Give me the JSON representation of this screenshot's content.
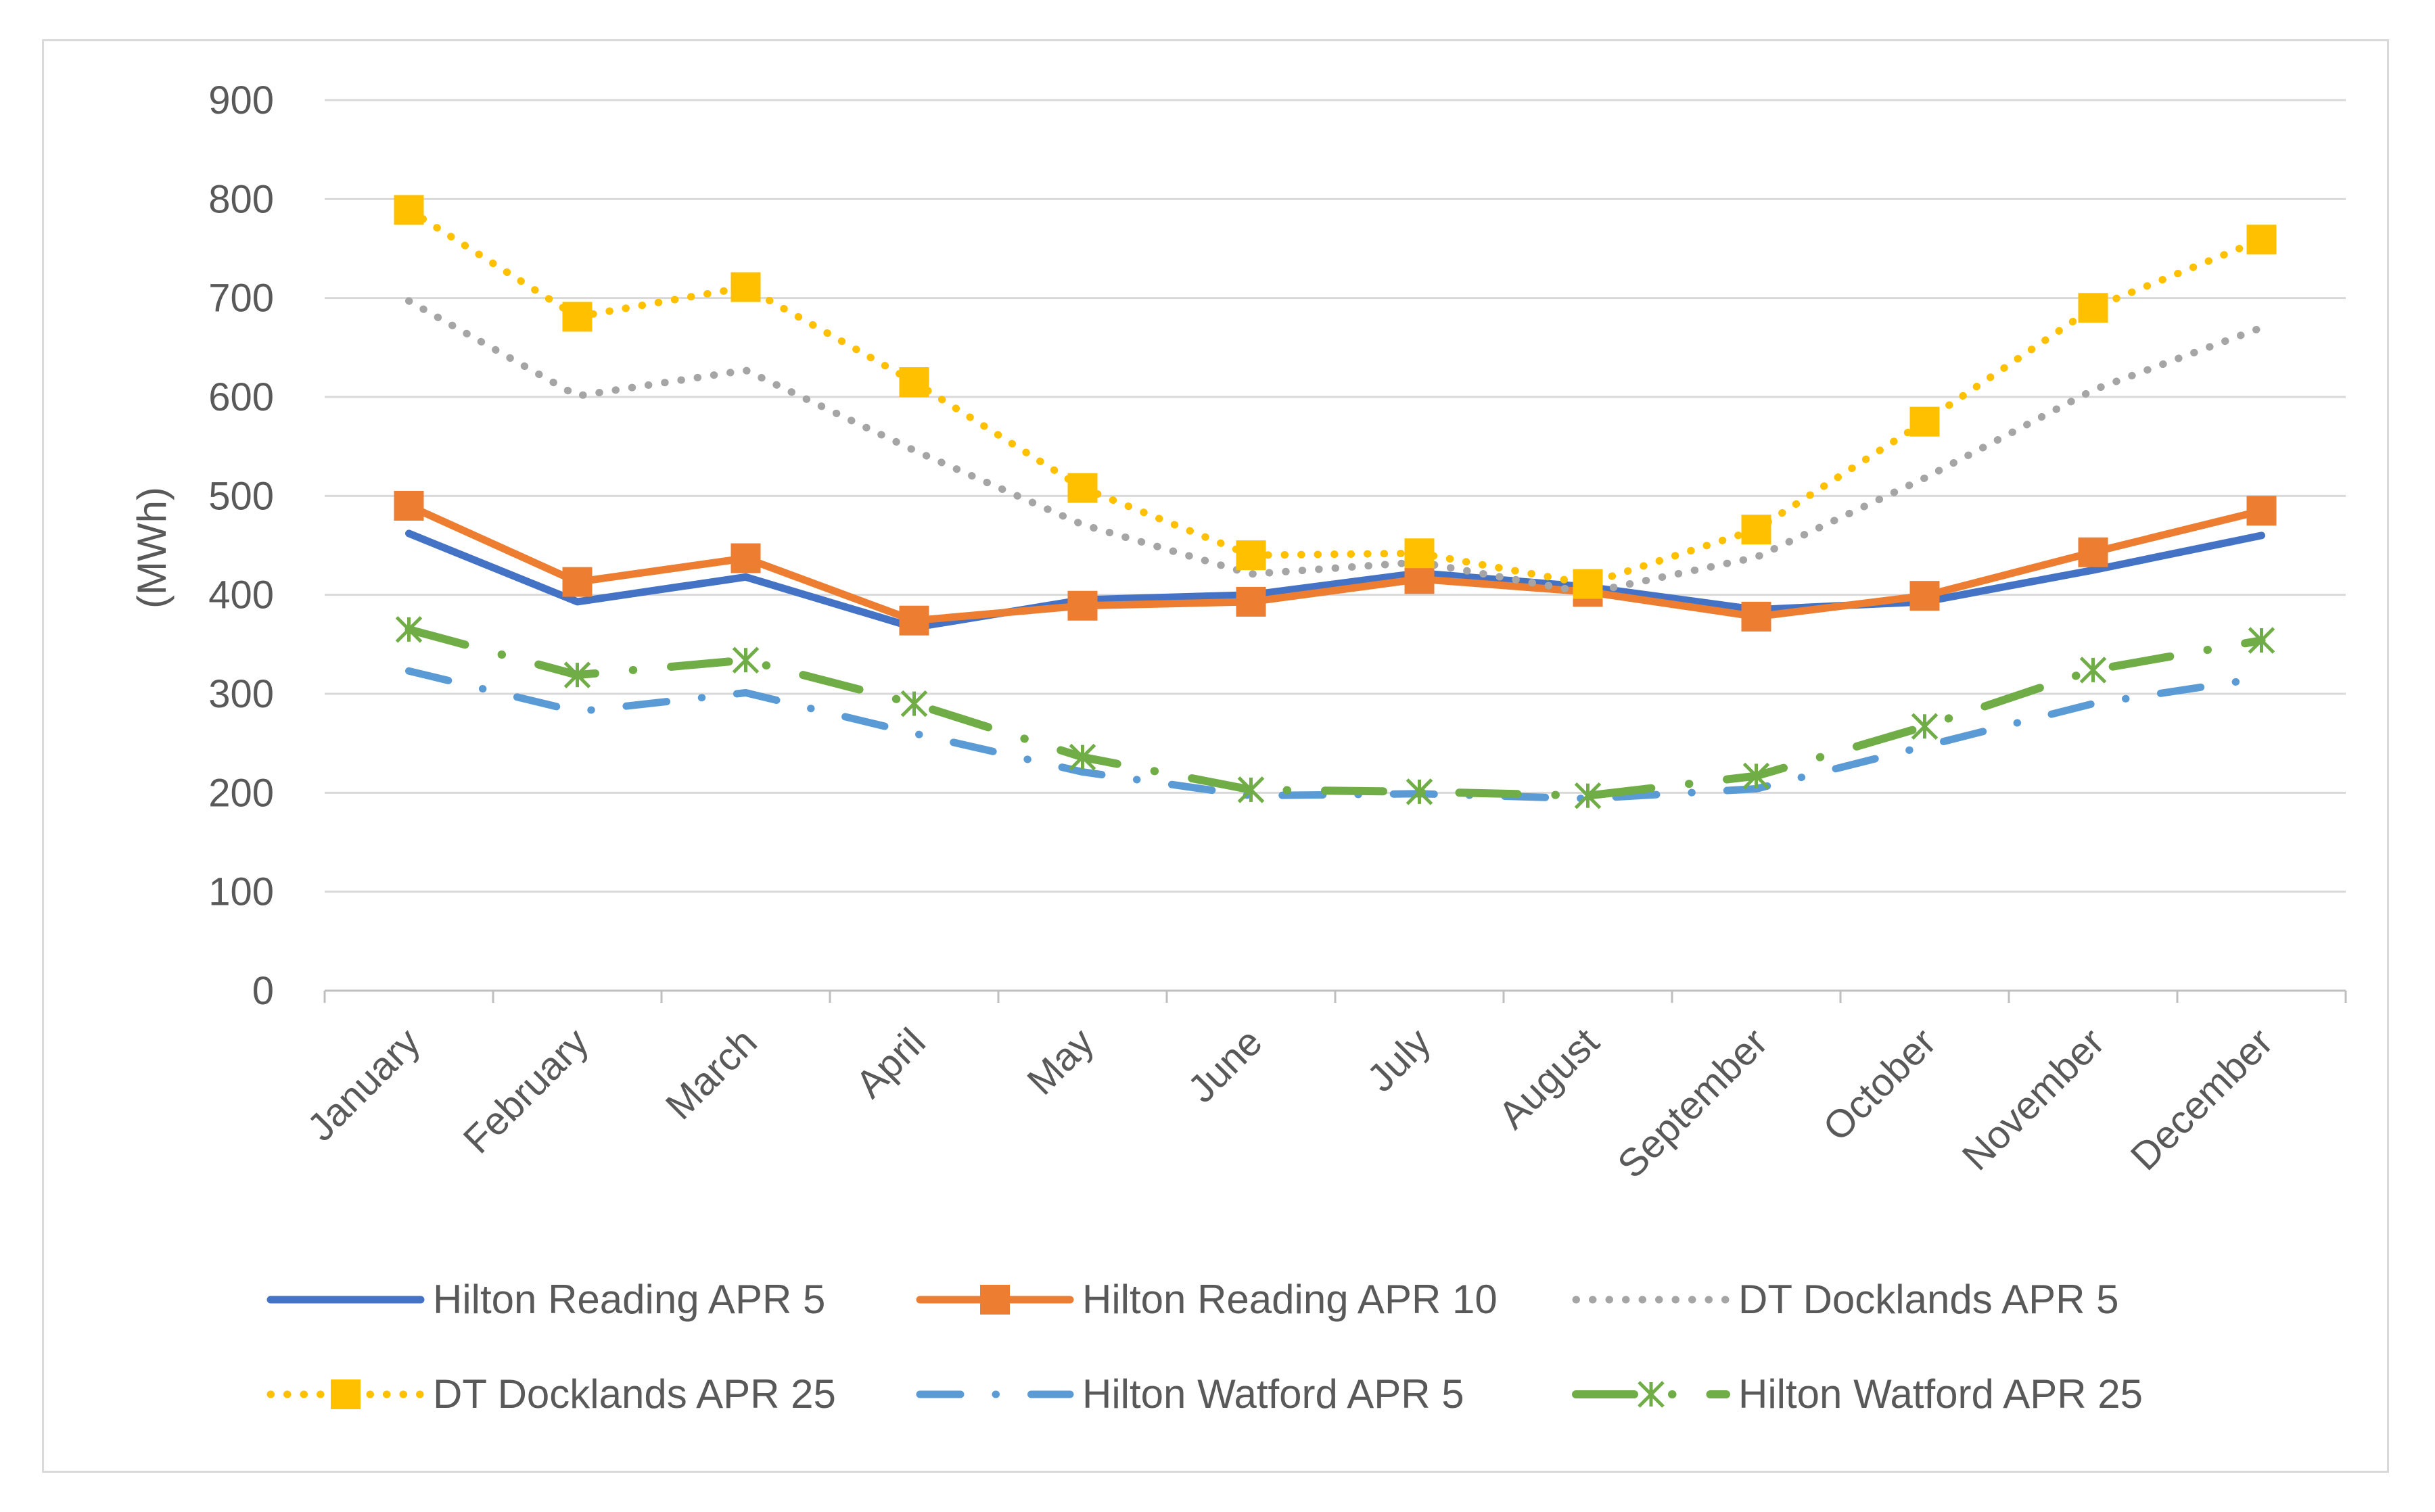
{
  "chart_data": {
    "type": "line",
    "title": "",
    "xlabel": "",
    "ylabel": "(MWh)",
    "ylim": [
      0,
      900
    ],
    "ytick_step": 100,
    "grid": true,
    "legend_position": "bottom",
    "categories": [
      "January",
      "February",
      "March",
      "April",
      "May",
      "June",
      "July",
      "August",
      "September",
      "October",
      "November",
      "December"
    ],
    "series": [
      {
        "name": "Hilton Reading APR 5",
        "color": "#4472c4",
        "line_style": "solid",
        "marker": "none",
        "values": [
          462,
          393,
          418,
          367,
          395,
          400,
          422,
          408,
          385,
          393,
          425,
          460
        ]
      },
      {
        "name": "Hilton Reading APR 10",
        "color": "#ed7d31",
        "line_style": "solid",
        "marker": "square",
        "values": [
          490,
          413,
          437,
          374,
          389,
          393,
          416,
          403,
          378,
          399,
          443,
          485
        ]
      },
      {
        "name": "DT Docklands APR 5",
        "color": "#a5a5a5",
        "line_style": "dotted",
        "marker": "none",
        "values": [
          697,
          601,
          627,
          546,
          471,
          421,
          433,
          402,
          438,
          518,
          607,
          670
        ]
      },
      {
        "name": "DT Docklands APR 25",
        "color": "#ffc000",
        "line_style": "dotted",
        "marker": "square",
        "values": [
          789,
          681,
          711,
          615,
          508,
          440,
          442,
          411,
          466,
          575,
          690,
          759
        ]
      },
      {
        "name": "Hilton Watford APR 5",
        "color": "#5b9bd5",
        "line_style": "dash-dot",
        "marker": "none",
        "values": [
          323,
          282,
          301,
          260,
          221,
          197,
          199,
          194,
          204,
          247,
          290,
          316
        ]
      },
      {
        "name": "Hilton Watford APR 25",
        "color": "#70ad47",
        "line_style": "long-dash-dot",
        "marker": "asterisk",
        "values": [
          365,
          319,
          334,
          290,
          236,
          203,
          201,
          197,
          217,
          267,
          324,
          354
        ]
      }
    ]
  }
}
